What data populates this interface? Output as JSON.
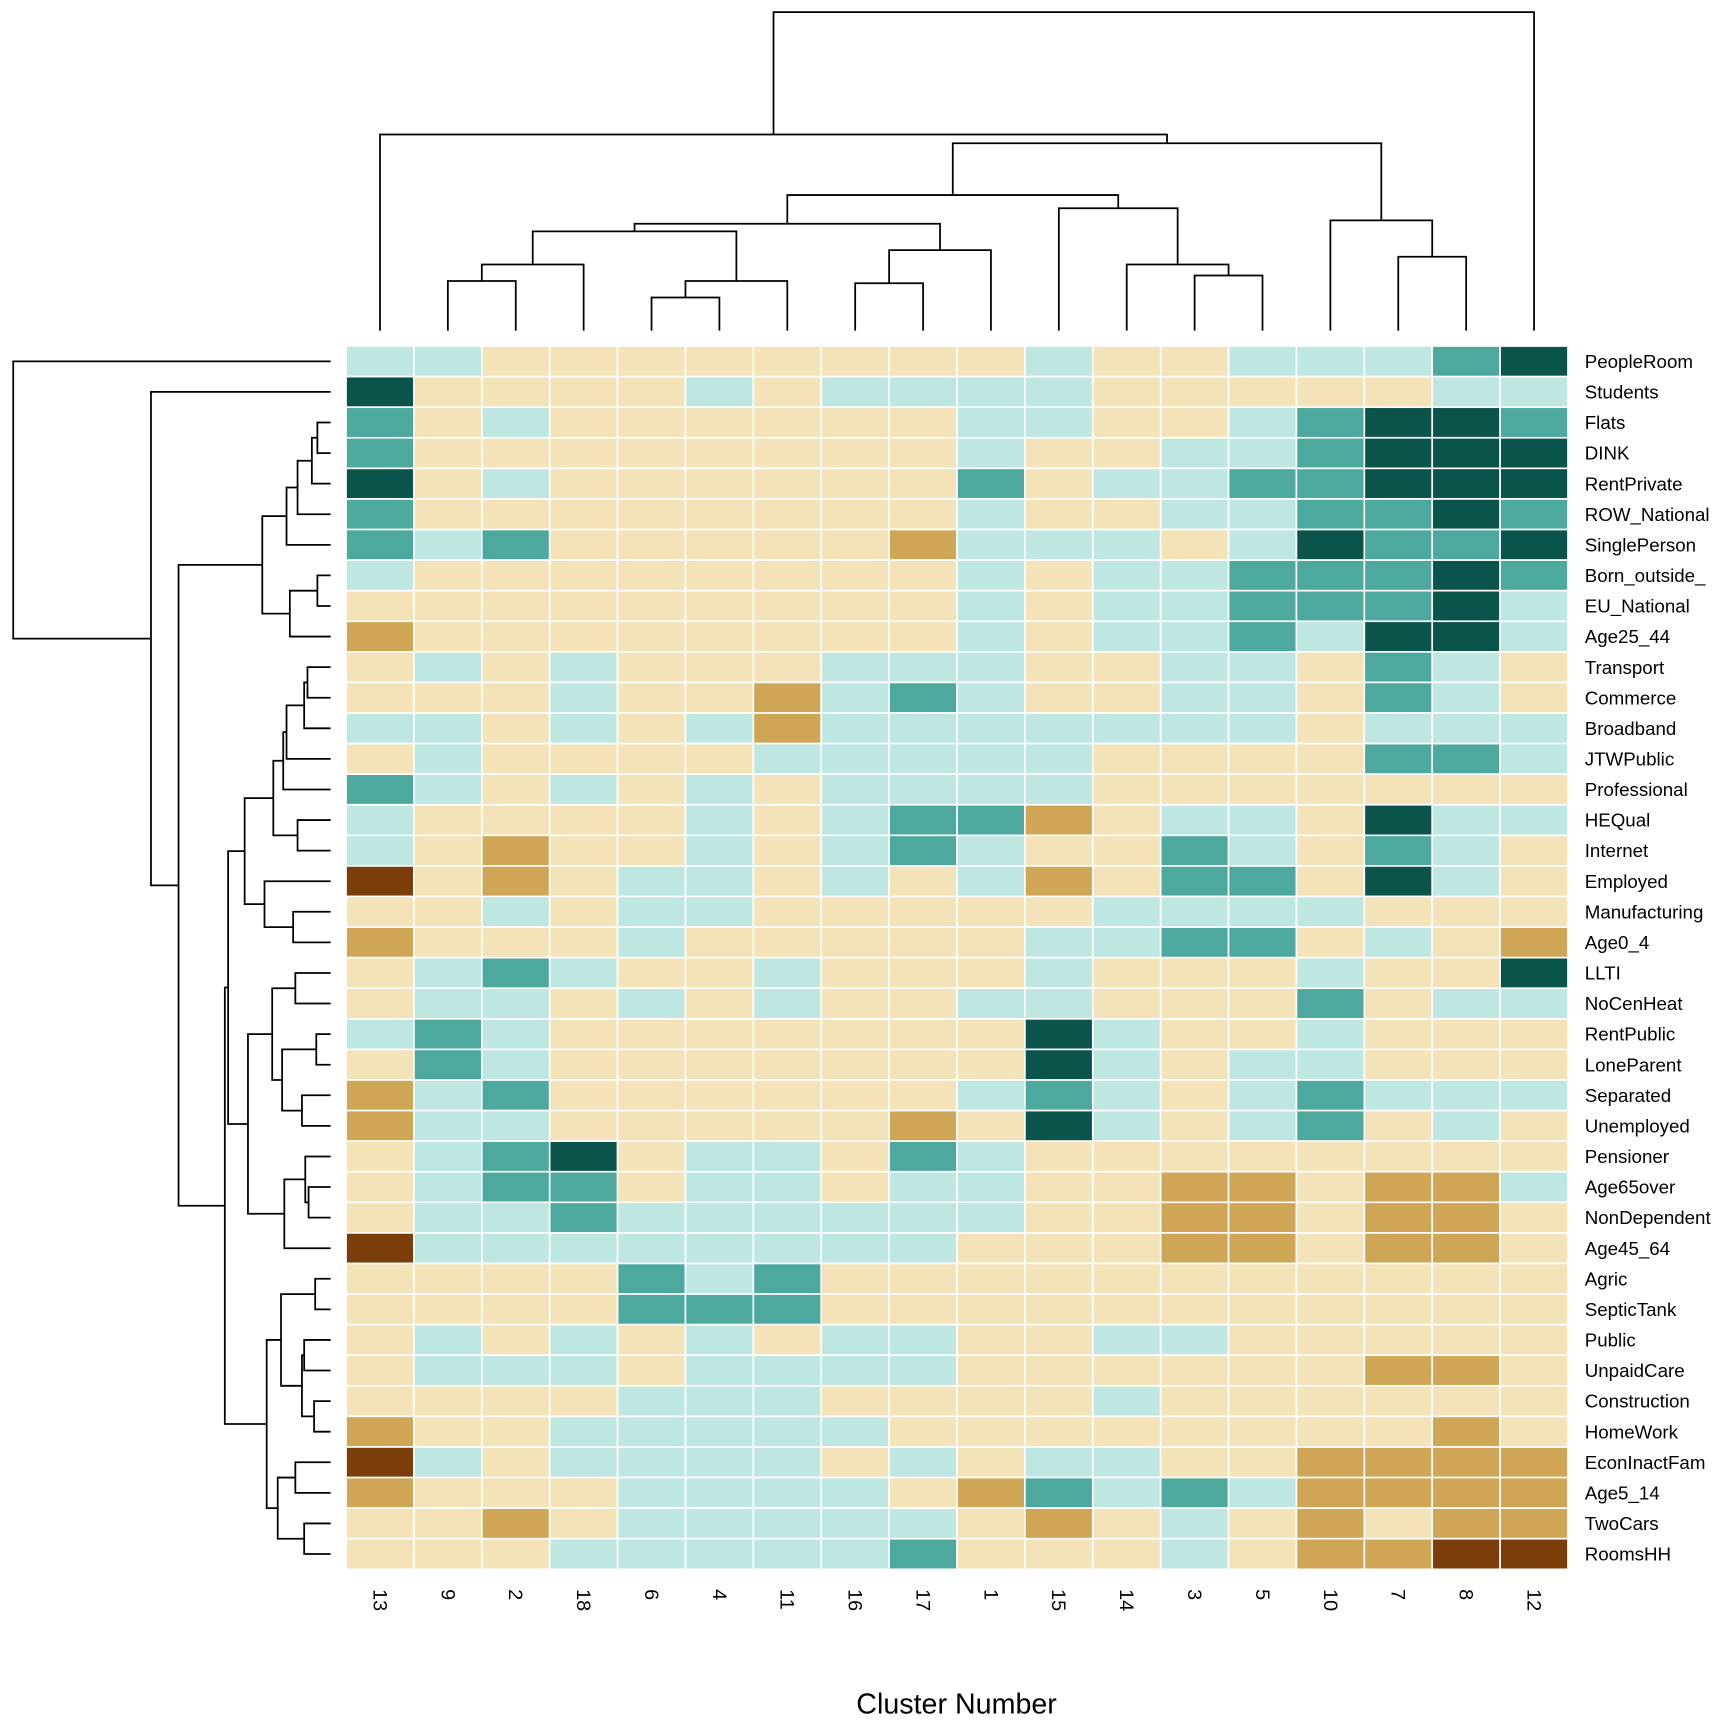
{
  "chart_data": {
    "type": "heatmap",
    "xlabel": "Cluster Number",
    "columns": [
      "13",
      "9",
      "2",
      "18",
      "6",
      "4",
      "11",
      "16",
      "17",
      "1",
      "15",
      "14",
      "3",
      "5",
      "10",
      "7",
      "8",
      "12"
    ],
    "rows": [
      "PeopleRoom",
      "Students",
      "Flats",
      "DINK",
      "RentPrivate",
      "ROW_National",
      "SinglePerson",
      "Born_outside_",
      "EU_National",
      "Age25_44",
      "Transport",
      "Commerce",
      "Broadband",
      "JTWPublic",
      "Professional",
      "HEQual",
      "Internet",
      "Employed",
      "Manufacturing",
      "Age0_4",
      "LLTI",
      "NoCenHeat",
      "RentPublic",
      "LoneParent",
      "Separated",
      "Unemployed",
      "Pensioner",
      "Age65over",
      "NonDependent",
      "Age45_64",
      "Agric",
      "SepticTank",
      "Public",
      "UnpaidCare",
      "Construction",
      "HomeWork",
      "EconInactFam",
      "Age5_14",
      "TwoCars",
      "RoomsHH"
    ],
    "level_colors": {
      "-2": "#7B3E0A",
      "-1": "#CFA656",
      "0": "#F4E3B8",
      "1": "#BFE7E1",
      "2": "#4DA89D",
      "3": "#0B544C"
    },
    "values": [
      [
        1,
        1,
        0,
        0,
        0,
        0,
        0,
        0,
        0,
        0,
        1,
        0,
        0,
        1,
        1,
        1,
        2,
        3
      ],
      [
        3,
        0,
        0,
        0,
        0,
        1,
        0,
        1,
        1,
        1,
        1,
        0,
        0,
        0,
        0,
        0,
        1,
        1
      ],
      [
        2,
        0,
        1,
        0,
        0,
        0,
        0,
        0,
        0,
        1,
        1,
        0,
        0,
        1,
        2,
        3,
        3,
        2
      ],
      [
        2,
        0,
        0,
        0,
        0,
        0,
        0,
        0,
        0,
        1,
        0,
        0,
        1,
        1,
        2,
        3,
        3,
        3
      ],
      [
        3,
        0,
        1,
        0,
        0,
        0,
        0,
        0,
        0,
        2,
        0,
        1,
        1,
        2,
        2,
        3,
        3,
        3
      ],
      [
        2,
        0,
        0,
        0,
        0,
        0,
        0,
        0,
        0,
        1,
        0,
        0,
        1,
        1,
        2,
        2,
        3,
        2
      ],
      [
        2,
        1,
        2,
        0,
        0,
        0,
        0,
        0,
        -1,
        1,
        1,
        1,
        0,
        1,
        3,
        2,
        2,
        3
      ],
      [
        1,
        0,
        0,
        0,
        0,
        0,
        0,
        0,
        0,
        1,
        0,
        1,
        1,
        2,
        2,
        2,
        3,
        2
      ],
      [
        0,
        0,
        0,
        0,
        0,
        0,
        0,
        0,
        0,
        1,
        0,
        1,
        1,
        2,
        2,
        2,
        3,
        1
      ],
      [
        -1,
        0,
        0,
        0,
        0,
        0,
        0,
        0,
        0,
        1,
        0,
        1,
        1,
        2,
        1,
        3,
        3,
        1
      ],
      [
        0,
        1,
        0,
        1,
        0,
        0,
        0,
        1,
        1,
        1,
        0,
        0,
        1,
        1,
        0,
        2,
        1,
        0
      ],
      [
        0,
        0,
        0,
        1,
        0,
        0,
        -1,
        1,
        2,
        1,
        0,
        0,
        1,
        1,
        0,
        2,
        1,
        0
      ],
      [
        1,
        1,
        0,
        1,
        0,
        1,
        -1,
        1,
        1,
        1,
        1,
        1,
        1,
        1,
        0,
        1,
        1,
        1
      ],
      [
        0,
        1,
        0,
        0,
        0,
        0,
        1,
        1,
        1,
        1,
        1,
        0,
        0,
        0,
        0,
        2,
        2,
        1
      ],
      [
        2,
        1,
        0,
        1,
        0,
        1,
        0,
        1,
        1,
        1,
        1,
        0,
        0,
        0,
        0,
        0,
        0,
        0
      ],
      [
        1,
        0,
        0,
        0,
        0,
        1,
        0,
        1,
        2,
        2,
        -1,
        0,
        1,
        1,
        0,
        3,
        1,
        1
      ],
      [
        1,
        0,
        -1,
        0,
        0,
        1,
        0,
        1,
        2,
        1,
        0,
        0,
        2,
        1,
        0,
        2,
        1,
        0
      ],
      [
        -2,
        0,
        -1,
        0,
        1,
        1,
        0,
        1,
        0,
        1,
        -1,
        0,
        2,
        2,
        0,
        3,
        1,
        0
      ],
      [
        0,
        0,
        1,
        0,
        1,
        1,
        0,
        0,
        0,
        0,
        0,
        1,
        1,
        1,
        1,
        0,
        0,
        0
      ],
      [
        -1,
        0,
        0,
        0,
        1,
        0,
        0,
        0,
        0,
        0,
        1,
        1,
        2,
        2,
        0,
        1,
        0,
        -1
      ],
      [
        0,
        1,
        2,
        1,
        0,
        0,
        1,
        0,
        0,
        0,
        1,
        0,
        0,
        0,
        1,
        0,
        0,
        3
      ],
      [
        0,
        1,
        1,
        0,
        1,
        0,
        1,
        0,
        0,
        1,
        1,
        0,
        0,
        0,
        2,
        0,
        1,
        1
      ],
      [
        1,
        2,
        1,
        0,
        0,
        0,
        0,
        0,
        0,
        0,
        3,
        1,
        0,
        0,
        1,
        0,
        0,
        0
      ],
      [
        0,
        2,
        1,
        0,
        0,
        0,
        0,
        0,
        0,
        0,
        3,
        1,
        0,
        1,
        1,
        0,
        0,
        0
      ],
      [
        -1,
        1,
        2,
        0,
        0,
        0,
        0,
        0,
        0,
        1,
        2,
        1,
        0,
        1,
        2,
        1,
        1,
        1
      ],
      [
        -1,
        1,
        1,
        0,
        0,
        0,
        0,
        0,
        -1,
        0,
        3,
        1,
        0,
        1,
        2,
        0,
        1,
        0
      ],
      [
        0,
        1,
        2,
        3,
        0,
        1,
        1,
        0,
        2,
        1,
        0,
        0,
        0,
        0,
        0,
        0,
        0,
        0
      ],
      [
        0,
        1,
        2,
        2,
        0,
        1,
        1,
        0,
        1,
        1,
        0,
        0,
        -1,
        -1,
        0,
        -1,
        -1,
        1
      ],
      [
        0,
        1,
        1,
        2,
        1,
        1,
        1,
        1,
        1,
        1,
        0,
        0,
        -1,
        -1,
        0,
        -1,
        -1,
        0
      ],
      [
        -2,
        1,
        1,
        1,
        1,
        1,
        1,
        1,
        1,
        0,
        0,
        0,
        -1,
        -1,
        0,
        -1,
        -1,
        0
      ],
      [
        0,
        0,
        0,
        0,
        2,
        1,
        2,
        0,
        0,
        0,
        0,
        0,
        0,
        0,
        0,
        0,
        0,
        0
      ],
      [
        0,
        0,
        0,
        0,
        2,
        2,
        2,
        0,
        0,
        0,
        0,
        0,
        0,
        0,
        0,
        0,
        0,
        0
      ],
      [
        0,
        1,
        0,
        1,
        0,
        1,
        0,
        1,
        1,
        0,
        0,
        1,
        1,
        0,
        0,
        0,
        0,
        0
      ],
      [
        0,
        1,
        1,
        1,
        0,
        1,
        1,
        1,
        1,
        0,
        0,
        0,
        0,
        0,
        0,
        -1,
        -1,
        0
      ],
      [
        0,
        0,
        0,
        0,
        1,
        1,
        1,
        0,
        0,
        0,
        0,
        1,
        0,
        0,
        0,
        0,
        0,
        0
      ],
      [
        -1,
        0,
        0,
        1,
        1,
        1,
        1,
        1,
        0,
        0,
        0,
        0,
        0,
        0,
        0,
        0,
        -1,
        0
      ],
      [
        -2,
        1,
        0,
        1,
        1,
        1,
        1,
        0,
        1,
        0,
        1,
        1,
        0,
        0,
        -1,
        -1,
        -1,
        -1
      ],
      [
        -1,
        0,
        0,
        0,
        1,
        1,
        1,
        1,
        0,
        -1,
        2,
        1,
        2,
        1,
        -1,
        -1,
        -1,
        -1
      ],
      [
        0,
        0,
        -1,
        0,
        1,
        1,
        1,
        1,
        1,
        0,
        -1,
        0,
        1,
        0,
        -1,
        0,
        -1,
        -1
      ],
      [
        0,
        0,
        0,
        1,
        1,
        1,
        1,
        1,
        2,
        0,
        0,
        0,
        1,
        0,
        -1,
        -1,
        -2,
        -2
      ]
    ],
    "row_dendrogram": true,
    "column_dendrogram": true,
    "grid": false
  }
}
